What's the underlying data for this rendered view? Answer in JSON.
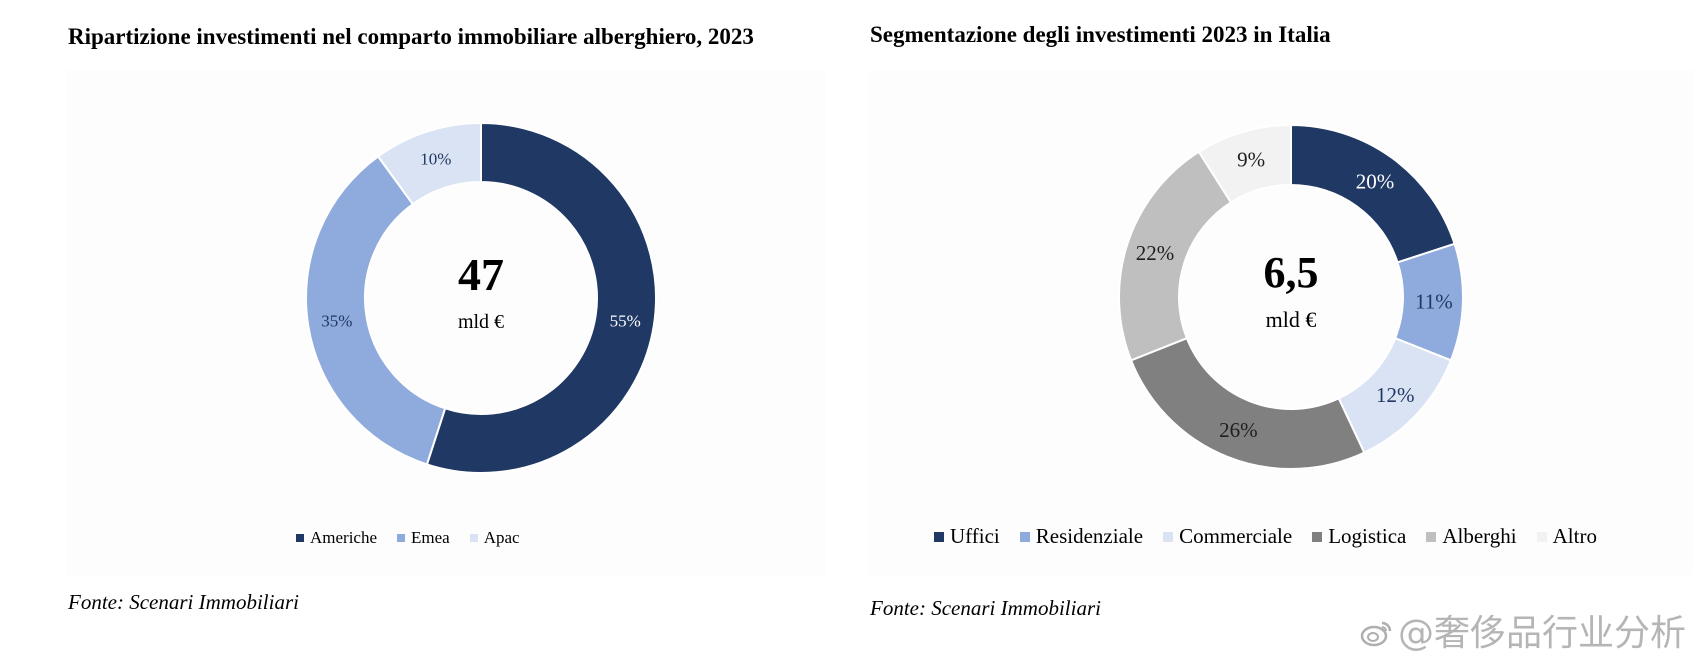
{
  "charts": [
    {
      "title": "Ripartizione investimenti nel comparto immobiliare alberghiero, 2023",
      "source": "Fonte: Scenari Immobiliari",
      "center_value": "47",
      "center_unit": "mld €"
    },
    {
      "title": "Segmentazione degli investimenti 2023 in Italia",
      "source": "Fonte: Scenari Immobiliari",
      "center_value": "6,5",
      "center_unit": "mld €"
    }
  ],
  "chart_data": [
    {
      "type": "pie",
      "variant": "donut",
      "title": "Ripartizione investimenti nel comparto immobiliare alberghiero, 2023",
      "categories": [
        "Americhe",
        "Emea",
        "Apac"
      ],
      "values": [
        55,
        35,
        10
      ],
      "value_labels": [
        "55%",
        "35%",
        "10%"
      ],
      "colors": [
        "#1f3864",
        "#8faadc",
        "#dae3f3"
      ],
      "center_value": "47",
      "center_unit": "mld €",
      "legend_position": "bottom"
    },
    {
      "type": "pie",
      "variant": "donut",
      "title": "Segmentazione degli investimenti 2023 in Italia",
      "categories": [
        "Uffici",
        "Residenziale",
        "Commerciale",
        "Logistica",
        "Alberghi",
        "Altro"
      ],
      "values": [
        20,
        11,
        12,
        26,
        22,
        9
      ],
      "value_labels": [
        "20%",
        "11%",
        "12%",
        "26%",
        "22%",
        "9%"
      ],
      "colors": [
        "#1f3864",
        "#8faadc",
        "#dae3f3",
        "#808080",
        "#bfbfbf",
        "#f2f2f2"
      ],
      "center_value": "6,5",
      "center_unit": "mld €",
      "legend_position": "bottom"
    }
  ],
  "watermark": {
    "text": "@奢侈品行业分析",
    "icon": "weibo-logo"
  }
}
